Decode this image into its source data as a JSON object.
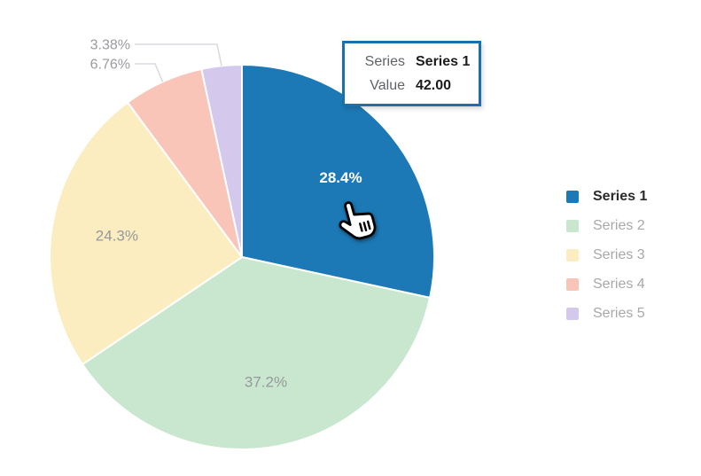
{
  "chart_data": {
    "type": "pie",
    "title": "",
    "legend_position": "right",
    "start_angle_deg": 0,
    "direction": "clockwise",
    "slices": [
      {
        "label": "Series 1",
        "percent": 28.4,
        "percent_label": "28.4%",
        "value": 42.0,
        "color": "#1d79b5",
        "highlighted": true,
        "label_placement": "inside"
      },
      {
        "label": "Series 2",
        "percent": 37.2,
        "percent_label": "37.2%",
        "color": "#c9e7cf",
        "highlighted": false,
        "label_placement": "inside"
      },
      {
        "label": "Series 3",
        "percent": 24.3,
        "percent_label": "24.3%",
        "color": "#fcedc0",
        "highlighted": false,
        "label_placement": "inside"
      },
      {
        "label": "Series 4",
        "percent": 6.76,
        "percent_label": "6.76%",
        "color": "#f9c5b8",
        "highlighted": false,
        "label_placement": "outside"
      },
      {
        "label": "Series 5",
        "percent": 3.38,
        "percent_label": "3.38%",
        "color": "#d4c9ec",
        "highlighted": false,
        "label_placement": "outside"
      }
    ],
    "label_colors": {
      "highlight": "#ffffff",
      "normal": "#96989b",
      "outside": "#9a9ba0"
    },
    "leader_line_color": "#d8dce2",
    "slice_border_color": "#ffffff"
  },
  "tooltip": {
    "series_label": "Series",
    "series_value": "Series 1",
    "value_label": "Value",
    "value_text": "42.00",
    "border_color": "#1d6fa8"
  },
  "legend": {
    "active_index": 0
  }
}
